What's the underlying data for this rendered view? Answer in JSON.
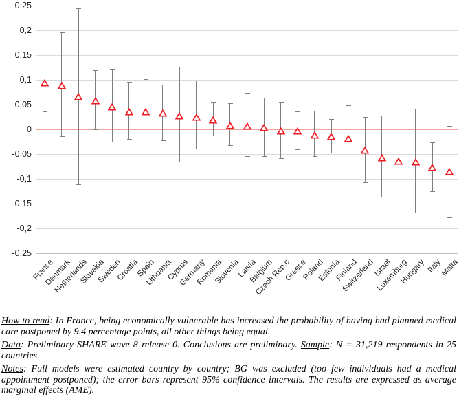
{
  "chart_data": {
    "type": "scatter",
    "marker": "open-triangle",
    "error_bars": "95% confidence intervals",
    "title": "",
    "xlabel": "",
    "ylabel": "",
    "ylim": [
      -0.25,
      0.25
    ],
    "ytick_step": 0.05,
    "grid": true,
    "legend": false,
    "zero_reference_line": true,
    "colors": {
      "marker": "#ed1c24",
      "zero_line": "#f5a29b",
      "error_bar": "#7f7f7f",
      "gridline": "#d9d9d9",
      "axis_line": "#bfbfbf",
      "tick_text": "#262626"
    },
    "yticks": [
      {
        "label": "0,25",
        "value": 0.25
      },
      {
        "label": "0,2",
        "value": 0.2
      },
      {
        "label": "0,15",
        "value": 0.15
      },
      {
        "label": "0,1",
        "value": 0.1
      },
      {
        "label": "0,05",
        "value": 0.05
      },
      {
        "label": "0",
        "value": 0
      },
      {
        "label": "-0,05",
        "value": -0.05
      },
      {
        "label": "-0,1",
        "value": -0.1
      },
      {
        "label": "-0,15",
        "value": -0.15
      },
      {
        "label": "-0,2",
        "value": -0.2
      },
      {
        "label": "-0,25",
        "value": -0.25
      }
    ],
    "categories": [
      "France",
      "Denmark",
      "Netherlands",
      "Slovakia",
      "Sweden",
      "Croatia",
      "Spain",
      "Lithuania",
      "Cyprus",
      "Germany",
      "Romania",
      "Slovenia",
      "Latvia",
      "Belgium",
      "Czech Rep.c",
      "Greece",
      "Poland",
      "Estonia",
      "Finland",
      "Switzerland",
      "Israel",
      "Luxemburg",
      "Hungary",
      "Italy",
      "Malta"
    ],
    "series": [
      {
        "name": "Average marginal effect (AME)",
        "values": [
          0.094,
          0.088,
          0.066,
          0.057,
          0.045,
          0.036,
          0.035,
          0.033,
          0.027,
          0.025,
          0.019,
          0.008,
          0.006,
          0.003,
          -0.004,
          -0.004,
          -0.012,
          -0.015,
          -0.019,
          -0.042,
          -0.057,
          -0.064,
          -0.066,
          -0.077,
          -0.086
        ]
      }
    ],
    "ci_low": [
      0.035,
      -0.015,
      -0.113,
      -0.002,
      -0.027,
      -0.021,
      -0.031,
      -0.024,
      -0.067,
      -0.04,
      -0.014,
      -0.034,
      -0.056,
      -0.055,
      -0.06,
      -0.042,
      -0.056,
      -0.049,
      -0.081,
      -0.108,
      -0.138,
      -0.191,
      -0.17,
      -0.126,
      -0.179
    ],
    "ci_high": [
      0.153,
      0.196,
      0.245,
      0.119,
      0.121,
      0.096,
      0.102,
      0.09,
      0.126,
      0.098,
      0.055,
      0.053,
      0.073,
      0.064,
      0.055,
      0.036,
      0.038,
      0.021,
      0.049,
      0.025,
      0.028,
      0.064,
      0.041,
      -0.026,
      0.007
    ]
  },
  "notes": {
    "how_to_read_label": "How to read",
    "how_to_read_text": ": In France, being economically vulnerable has increased the probability of having had planned medical care postponed by 9.4 percentage points, all other things being equal.",
    "data_label": "Data",
    "data_text": ": Preliminary SHARE wave 8 release 0. Conclusions are preliminary. ",
    "sample_label": "Sample",
    "sample_text": ": N = 31,219 respondents in 25 countries.",
    "notes_label": "Notes",
    "notes_text": ": Full models were estimated country by country; BG was excluded (too few individuals had a medical appointment postponed); the error bars represent 95% confidence intervals. The results are expressed as average marginal effects (AME)."
  }
}
